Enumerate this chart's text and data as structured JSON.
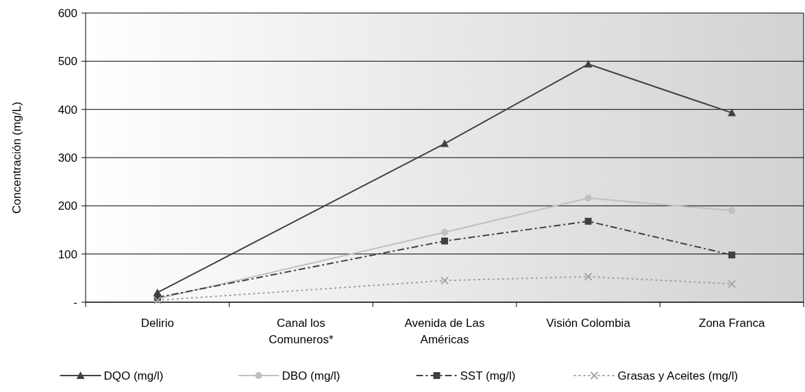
{
  "chart_data": {
    "type": "line",
    "ylabel": "Concentración (mg/L)",
    "categories": [
      "Delirio",
      "Canal los Comuneros*",
      "Avenida de Las Américas",
      "Visión Colombia",
      "Zona Franca"
    ],
    "ylim": [
      0,
      600
    ],
    "yticks": [
      {
        "value": 0,
        "label": "-"
      },
      100,
      200,
      300,
      400,
      500,
      600
    ],
    "grid": "y",
    "legend": "bottom",
    "series": [
      {
        "name": "DQO (mg/l)",
        "color": "#404040",
        "marker": "triangle",
        "line_style": "solid",
        "values": [
          20,
          null,
          329,
          494,
          393
        ]
      },
      {
        "name": "DBO (mg/l)",
        "color": "#c0c0c0",
        "marker": "circle",
        "line_style": "solid",
        "values": [
          7,
          null,
          145,
          216,
          190
        ]
      },
      {
        "name": "SST (mg/l)",
        "color": "#404040",
        "marker": "square",
        "line_style": "dashed",
        "values": [
          10,
          null,
          127,
          168,
          98
        ]
      },
      {
        "name": "Grasas y Aceites (mg/l)",
        "color": "#a0a0a0",
        "marker": "cross",
        "line_style": "dotted",
        "values": [
          4,
          null,
          45,
          53,
          38
        ]
      }
    ]
  }
}
